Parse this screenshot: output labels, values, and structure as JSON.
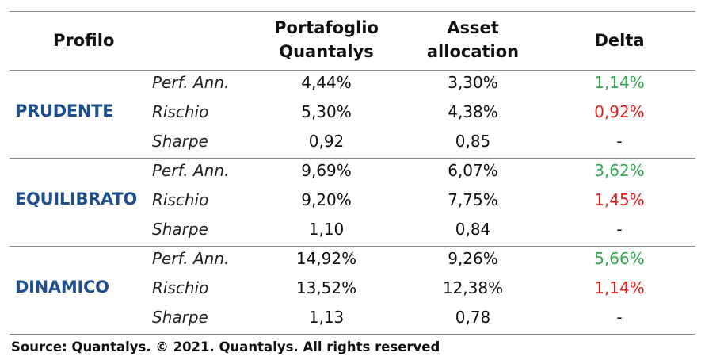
{
  "header": {
    "profilo": "Profilo",
    "portafoglio_line1": "Portafoglio",
    "portafoglio_line2": "Quantalys",
    "asset_line1": "Asset",
    "asset_line2": "allocation",
    "delta": "Delta"
  },
  "groups": [
    {
      "name": "PRUDENTE",
      "rows": [
        {
          "metric": "Perf. Ann.",
          "portafoglio": "4,44%",
          "asset": "3,30%",
          "delta": "1,14%",
          "delta_tone": "positive"
        },
        {
          "metric": "Rischio",
          "portafoglio": "5,30%",
          "asset": "4,38%",
          "delta": "0,92%",
          "delta_tone": "negative"
        },
        {
          "metric": "Sharpe",
          "portafoglio": "0,92",
          "asset": "0,85",
          "delta": "-",
          "delta_tone": "neutral"
        }
      ]
    },
    {
      "name": "EQUILIBRATO",
      "rows": [
        {
          "metric": "Perf. Ann.",
          "portafoglio": "9,69%",
          "asset": "6,07%",
          "delta": "3,62%",
          "delta_tone": "positive"
        },
        {
          "metric": "Rischio",
          "portafoglio": "9,20%",
          "asset": "7,75%",
          "delta": "1,45%",
          "delta_tone": "negative"
        },
        {
          "metric": "Sharpe",
          "portafoglio": "1,10",
          "asset": "0,84",
          "delta": "-",
          "delta_tone": "neutral"
        }
      ]
    },
    {
      "name": "DINAMICO",
      "rows": [
        {
          "metric": "Perf. Ann.",
          "portafoglio": "14,92%",
          "asset": "9,26%",
          "delta": "5,66%",
          "delta_tone": "positive"
        },
        {
          "metric": "Rischio",
          "portafoglio": "13,52%",
          "asset": "12,38%",
          "delta": "1,14%",
          "delta_tone": "negative"
        },
        {
          "metric": "Sharpe",
          "portafoglio": "1,13",
          "asset": "0,78",
          "delta": "-",
          "delta_tone": "neutral"
        }
      ]
    }
  ],
  "source": "Source: Quantalys. © 2021. Quantalys. All rights reserved",
  "colors": {
    "group_name": "#1f4e8c",
    "positive": "#2fa84f",
    "negative": "#e02020",
    "rule": "#8a8a8a"
  }
}
